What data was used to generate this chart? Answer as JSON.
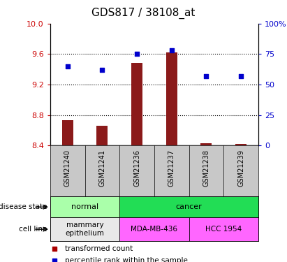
{
  "title": "GDS817 / 38108_at",
  "samples": [
    "GSM21240",
    "GSM21241",
    "GSM21236",
    "GSM21237",
    "GSM21238",
    "GSM21239"
  ],
  "bar_values": [
    8.73,
    8.66,
    9.48,
    9.62,
    8.43,
    8.42
  ],
  "bar_base": 8.4,
  "dot_values": [
    65,
    62,
    75,
    78,
    57,
    57
  ],
  "ylim_left": [
    8.4,
    10.0
  ],
  "ylim_right": [
    0,
    100
  ],
  "yticks_left": [
    8.4,
    8.8,
    9.2,
    9.6,
    10.0
  ],
  "yticks_right": [
    0,
    25,
    50,
    75,
    100
  ],
  "bar_color": "#8B1A1A",
  "dot_color": "#0000CC",
  "disease_state_groups": [
    {
      "label": "normal",
      "span": [
        0,
        2
      ],
      "color": "#AAFFAA"
    },
    {
      "label": "cancer",
      "span": [
        2,
        6
      ],
      "color": "#22DD55"
    }
  ],
  "cell_line_groups": [
    {
      "label": "mammary\nepithelium",
      "span": [
        0,
        2
      ],
      "color": "#E8E8E8"
    },
    {
      "label": "MDA-MB-436",
      "span": [
        2,
        4
      ],
      "color": "#FF66FF"
    },
    {
      "label": "HCC 1954",
      "span": [
        4,
        6
      ],
      "color": "#FF66FF"
    }
  ],
  "legend_items": [
    {
      "label": "transformed count",
      "color": "#AA0000"
    },
    {
      "label": "percentile rank within the sample",
      "color": "#0000CC"
    }
  ],
  "left_tick_color": "#CC0000",
  "right_tick_color": "#0000CC",
  "sample_bg_color": "#C8C8C8",
  "title_fontsize": 11,
  "tick_fontsize": 8,
  "sample_fontsize": 7,
  "annot_fontsize": 8,
  "legend_fontsize": 7.5
}
